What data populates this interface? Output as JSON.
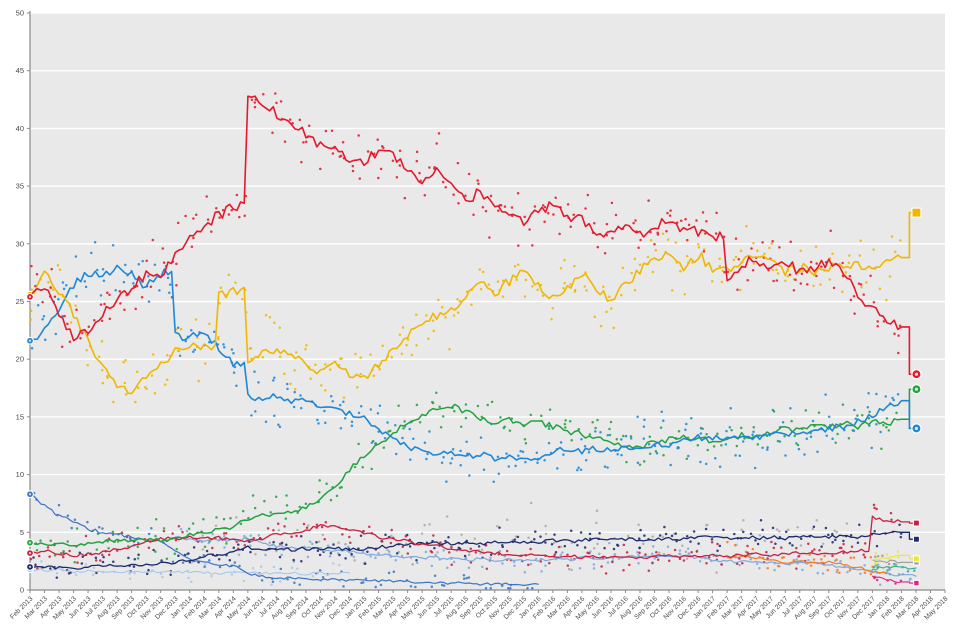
{
  "chart_data": {
    "type": "scatter",
    "title": "",
    "xlabel": "",
    "ylabel": "",
    "grid": "horizontal-white-on-grey",
    "legend": "none",
    "colors": {
      "plot_bg": "#e9e9e9",
      "grid": "#ffffff",
      "axis": "#8a8a8a",
      "tick_label": "#4a4a4a"
    },
    "y_axis": {
      "min": 0,
      "max": 50,
      "step": 5,
      "ticks": [
        0,
        5,
        10,
        15,
        20,
        25,
        30,
        35,
        40,
        45,
        50
      ]
    },
    "x_axis": {
      "labels": [
        "Feb 2013",
        "Mar 2013",
        "Apr 2013",
        "May 2013",
        "Jun 2013",
        "Jul 2013",
        "Aug 2013",
        "Sep 2013",
        "Oct 2013",
        "Nov 2013",
        "Dec 2013",
        "Jan 2014",
        "Feb 2014",
        "Mar 2014",
        "Apr 2014",
        "May 2014",
        "Jun 2014",
        "Jul 2014",
        "Aug 2014",
        "Sep 2014",
        "Oct 2014",
        "Nov 2014",
        "Dec 2014",
        "Jan 2015",
        "Feb 2015",
        "Mar 2015",
        "Apr 2015",
        "May 2015",
        "Jun 2015",
        "Jul 2015",
        "Aug 2015",
        "Sep 2015",
        "Oct 2015",
        "Nov 2015",
        "Dec 2015",
        "Jan 2016",
        "Feb 2016",
        "Mar 2016",
        "Apr 2016",
        "May 2016",
        "Jun 2016",
        "Jul 2016",
        "Aug 2016",
        "Sep 2016",
        "Oct 2016",
        "Nov 2016",
        "Dec 2016",
        "Jan 2017",
        "Feb 2017",
        "Mar 2017",
        "Apr 2017",
        "May 2017",
        "Jun 2017",
        "Jul 2017",
        "Aug 2017",
        "Sep 2017",
        "Oct 2017",
        "Nov 2017",
        "Dec 2017",
        "Jan 2018",
        "Feb 2018",
        "Mar 2018",
        "Apr 2018",
        "May 2018"
      ]
    },
    "series": [
      {
        "name": "UdC-pale-blue",
        "color": "#A9C7E8",
        "start_index": 0,
        "sd": 0.7,
        "ppm": 2,
        "line": true,
        "lw": 1.1,
        "start_marker": true,
        "values": [
          1.8,
          1.7,
          1.8,
          1.6,
          1.7,
          1.6,
          1.5,
          1.6,
          1.5,
          1.6,
          1.5,
          1.6,
          1.5,
          1.4,
          1.5,
          1.4,
          1.5,
          1.4,
          1.5,
          1.4,
          1.5,
          1.4,
          1.5
        ]
      },
      {
        "name": "others-grey",
        "color": "#ABABAB",
        "start_index": 11,
        "sd": 1.8,
        "ppm": 2,
        "line": false,
        "lw": 0,
        "values": [
          4.4,
          4.4,
          4.4,
          4.4,
          4.4,
          4.4,
          4.4,
          4.4,
          4.4,
          4.4,
          4.4,
          4.4,
          4.4,
          4.4,
          4.4,
          4.4,
          4.4,
          4.4,
          4.4,
          4.4,
          4.4,
          4.4,
          4.4,
          4.4,
          4.4,
          4.4,
          4.4,
          4.4,
          4.4,
          4.4,
          4.4,
          4.4,
          4.4,
          4.4,
          4.4,
          4.4,
          4.4,
          4.4,
          4.4,
          4.4,
          4.4,
          4.4,
          4.4,
          4.4,
          4.4,
          4.4,
          4.4
        ]
      },
      {
        "name": "SC-blue",
        "color": "#3B74C4",
        "start_index": 0,
        "sd": 0.8,
        "ppm": 2,
        "line": true,
        "lw": 1.2,
        "start_marker": true,
        "values": [
          8.3,
          7.2,
          6.5,
          5.8,
          5.3,
          5.0,
          4.8,
          4.6,
          4.4,
          4.2,
          3.4,
          2.6,
          2.4,
          2.2,
          2.1,
          1.4,
          1.2,
          1.1,
          1.0,
          1.0,
          0.9,
          0.9,
          0.8,
          0.9,
          0.8,
          0.8,
          0.7,
          0.7,
          0.6,
          0.6,
          0.6,
          0.5,
          0.5,
          0.5,
          0.5,
          0.5
        ]
      },
      {
        "name": "NCD-AP-lightblue",
        "color": "#7FA8DC",
        "start_index": 10,
        "sd": 0.9,
        "ppm": 3,
        "line": true,
        "lw": 1.2,
        "values": [
          4.6,
          4.4,
          4.2,
          4.4,
          4.3,
          4.4,
          4.0,
          3.8,
          3.6,
          3.7,
          3.5,
          3.4,
          3.3,
          3.2,
          3.0,
          3.0,
          2.9,
          2.8,
          2.8,
          2.7,
          2.6,
          2.7,
          2.5,
          2.6,
          2.5,
          2.6,
          2.7,
          2.6,
          2.8,
          2.7,
          2.8,
          2.9,
          2.8,
          3.0,
          2.9,
          3.0,
          2.8,
          2.6,
          2.5,
          2.4,
          2.5,
          2.4,
          2.3,
          2.4,
          2.3,
          2.2,
          2.0,
          1.8,
          1.6,
          1.4,
          1.3,
          1.2
        ]
      },
      {
        "name": "MDP-orange",
        "color": "#F47C20",
        "start_index": 48,
        "sd": 0.9,
        "ppm": 3,
        "line": true,
        "lw": 1.2,
        "values": [
          2.8,
          3.0,
          2.8,
          2.6,
          2.4,
          2.5,
          2.3,
          2.4,
          2.2,
          2.0,
          1.6,
          1.4
        ]
      },
      {
        "name": "Insieme-teal",
        "color": "#2FAE8F",
        "start_index": 58,
        "sd": 0.7,
        "ppm": 3,
        "line": true,
        "lw": 1.1,
        "values": [
          1.8,
          2.0,
          1.9,
          1.9
        ]
      },
      {
        "name": "CP-magenta",
        "color": "#E0218A",
        "start_index": 58,
        "sd": 0.5,
        "ppm": 3,
        "line": true,
        "lw": 1.1,
        "has_end_result": true,
        "end_shape": "square",
        "end_size": 5.5,
        "values": [
          1.2,
          0.9,
          0.7,
          0.6
        ]
      },
      {
        "name": "NcI-grey",
        "color": "#9B9B9B",
        "start_index": 58,
        "sd": 0.7,
        "ppm": 3,
        "line": true,
        "lw": 1.1,
        "has_end_result": true,
        "end_shape": "square",
        "end_size": 5.5,
        "values": [
          2.6,
          2.5,
          2.4,
          2.4
        ]
      },
      {
        "name": "FdI-navy",
        "color": "#1B2A6B",
        "start_index": 0,
        "sd": 1.0,
        "ppm": 3,
        "line": true,
        "lw": 1.3,
        "start_marker": true,
        "has_end_result": true,
        "end_shape": "square",
        "end_size": 6,
        "values": [
          2.0,
          2.0,
          1.9,
          1.9,
          2.0,
          2.1,
          2.1,
          2.2,
          2.2,
          2.3,
          2.4,
          2.6,
          2.9,
          3.1,
          3.3,
          3.7,
          3.6,
          3.6,
          3.5,
          3.6,
          3.5,
          3.6,
          3.5,
          3.6,
          3.7,
          3.8,
          3.9,
          4.0,
          4.1,
          4.0,
          4.1,
          4.0,
          4.1,
          4.2,
          4.1,
          4.2,
          4.3,
          4.2,
          4.3,
          4.4,
          4.3,
          4.4,
          4.3,
          4.4,
          4.5,
          4.4,
          4.5,
          4.6,
          4.5,
          4.6,
          4.5,
          4.6,
          4.5,
          4.6,
          4.7,
          4.6,
          4.7,
          4.6,
          4.8,
          4.9,
          5.0,
          4.4
        ]
      },
      {
        "name": "SEL-SI-LeU-crimson",
        "color": "#C62141",
        "start_index": 0,
        "sd": 1.0,
        "ppm": 3,
        "line": true,
        "lw": 1.3,
        "start_marker": true,
        "has_end_result": true,
        "end_shape": "square",
        "end_size": 6,
        "values": [
          3.2,
          3.4,
          3.2,
          3.0,
          3.1,
          3.3,
          3.5,
          3.8,
          4.2,
          4.5,
          4.4,
          4.6,
          4.4,
          4.5,
          4.3,
          4.2,
          4.5,
          4.8,
          5.0,
          5.2,
          5.5,
          5.4,
          5.2,
          5.0,
          4.6,
          4.4,
          4.2,
          4.0,
          3.8,
          3.6,
          3.4,
          3.3,
          3.2,
          3.1,
          3.0,
          3.0,
          2.9,
          3.0,
          2.8,
          2.9,
          2.8,
          2.9,
          2.8,
          2.9,
          3.0,
          2.9,
          3.0,
          3.0,
          2.9,
          3.0,
          3.1,
          3.0,
          3.1,
          3.2,
          3.1,
          3.2,
          3.3,
          3.4,
          6.3,
          6.0,
          5.9,
          5.8
        ]
      },
      {
        "name": "PiuEuropa-yellow",
        "color": "#EDE539",
        "start_index": 58,
        "sd": 0.7,
        "ppm": 4,
        "line": true,
        "lw": 1.2,
        "has_end_result": true,
        "end_shape": "square",
        "end_size": 6,
        "values": [
          2.6,
          2.8,
          3.0,
          2.7
        ]
      },
      {
        "name": "LN-green",
        "color": "#23A23F",
        "start_index": 0,
        "sd": 1.6,
        "ppm": 3,
        "line": true,
        "lw": 1.5,
        "start_marker": true,
        "has_end_result": true,
        "end_shape": "circle",
        "values": [
          4.1,
          4.0,
          4.0,
          3.9,
          4.0,
          4.2,
          4.3,
          4.2,
          4.4,
          4.3,
          4.5,
          4.8,
          5.0,
          5.2,
          5.5,
          6.2,
          6.5,
          6.6,
          6.8,
          7.2,
          8.0,
          9.0,
          10.5,
          11.5,
          12.5,
          13.5,
          14.5,
          15.2,
          15.5,
          16.0,
          15.5,
          15.0,
          14.6,
          14.8,
          14.4,
          14.6,
          14.2,
          13.8,
          13.5,
          13.2,
          12.8,
          12.5,
          12.4,
          12.8,
          13.0,
          13.2,
          13.0,
          13.0,
          13.2,
          13.4,
          13.2,
          13.6,
          14.0,
          13.8,
          14.2,
          14.0,
          14.4,
          14.2,
          14.6,
          14.4,
          14.8,
          17.4
        ]
      },
      {
        "name": "FI-PdL-azure",
        "color": "#1E87D6",
        "start_index": 0,
        "sd": 2.0,
        "ppm": 4,
        "line": true,
        "lw": 1.6,
        "start_marker": true,
        "has_end_result": true,
        "end_shape": "circle",
        "values": [
          21.6,
          22.5,
          24.5,
          26.5,
          27.5,
          27.0,
          27.8,
          27.5,
          26.2,
          27.4,
          22.0,
          21.8,
          22.3,
          21.0,
          19.5,
          16.8,
          16.5,
          16.8,
          16.2,
          16.5,
          15.8,
          15.5,
          15.2,
          15.0,
          14.0,
          13.2,
          12.4,
          12.2,
          11.8,
          12.0,
          11.5,
          11.8,
          11.4,
          11.6,
          11.2,
          11.5,
          12.0,
          12.2,
          12.0,
          12.3,
          12.0,
          12.4,
          12.2,
          12.6,
          12.4,
          13.0,
          13.2,
          13.2,
          13.0,
          13.4,
          13.2,
          13.6,
          13.4,
          13.8,
          13.6,
          14.0,
          14.2,
          14.6,
          15.2,
          15.8,
          16.4,
          14.0
        ]
      },
      {
        "name": "M5S-yellow",
        "color": "#EFB700",
        "start_index": 0,
        "sd": 2.2,
        "ppm": 4,
        "line": true,
        "lw": 1.6,
        "start_marker": true,
        "has_end_result": true,
        "end_shape": "square",
        "end_size": 9,
        "values": [
          25.6,
          27.2,
          26.0,
          24.0,
          21.5,
          19.5,
          17.5,
          17.2,
          18.5,
          19.5,
          20.8,
          21.3,
          21.0,
          25.6,
          25.8,
          19.8,
          20.6,
          20.8,
          20.2,
          19.6,
          18.8,
          19.5,
          18.6,
          18.3,
          19.5,
          21.0,
          22.0,
          23.0,
          23.8,
          24.5,
          25.2,
          26.5,
          25.6,
          26.8,
          27.8,
          26.5,
          25.2,
          26.2,
          27.4,
          26.2,
          24.8,
          26.6,
          27.6,
          29.0,
          29.2,
          28.0,
          29.0,
          28.0,
          27.5,
          28.5,
          29.0,
          28.2,
          27.6,
          28.0,
          27.5,
          28.0,
          27.8,
          28.2,
          27.8,
          28.4,
          28.8,
          32.7
        ]
      },
      {
        "name": "PD-red",
        "color": "#E4192C",
        "start_index": 0,
        "sd": 2.2,
        "ppm": 4,
        "line": true,
        "lw": 1.6,
        "start_marker": true,
        "has_end_result": true,
        "end_shape": "circle",
        "values": [
          25.4,
          26.2,
          24.0,
          21.8,
          22.5,
          24.0,
          25.2,
          26.2,
          27.5,
          27.2,
          28.8,
          30.8,
          31.5,
          32.5,
          33.2,
          42.8,
          42.0,
          41.2,
          40.6,
          39.6,
          38.4,
          38.0,
          37.4,
          37.0,
          38.0,
          37.6,
          36.6,
          35.4,
          36.2,
          35.0,
          33.8,
          34.4,
          33.2,
          32.6,
          31.6,
          32.8,
          33.4,
          32.6,
          32.0,
          31.2,
          30.6,
          31.6,
          30.8,
          31.4,
          32.0,
          31.4,
          31.0,
          30.6,
          27.0,
          28.2,
          28.6,
          28.0,
          28.4,
          27.6,
          28.0,
          28.4,
          27.6,
          25.5,
          24.5,
          23.2,
          22.8,
          18.7
        ]
      }
    ]
  }
}
